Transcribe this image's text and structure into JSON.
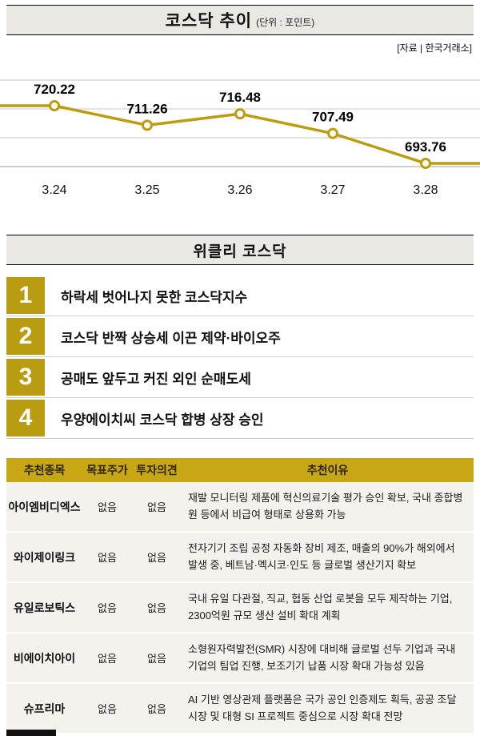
{
  "header": {
    "title": "코스닥 추이",
    "unit": "(단위 : 포인트)",
    "source": "[자료 | 한국거래소]"
  },
  "chart_data": {
    "type": "line",
    "title": "코스닥 추이 (단위 : 포인트)",
    "x": [
      "3.24",
      "3.25",
      "3.26",
      "3.27",
      "3.28"
    ],
    "values": [
      720.22,
      711.26,
      716.48,
      707.49,
      693.76
    ],
    "value_labels": [
      "720.22",
      "711.26",
      "716.48",
      "707.49",
      "693.76"
    ],
    "ylim": [
      690,
      724
    ],
    "grid": true,
    "line_color": "#bb9d10",
    "point_fill": "#fffdf4"
  },
  "weekly": {
    "title": "위클리 코스닥",
    "items": [
      {
        "rank": "1",
        "text": "하락세 벗어나지 못한 코스닥지수"
      },
      {
        "rank": "2",
        "text": "코스닥 반짝 상승세 이끈 제약·바이오주"
      },
      {
        "rank": "3",
        "text": "공매도 앞두고 커진 외인 순매도세"
      },
      {
        "rank": "4",
        "text": "우양에이치씨 코스닥 합병 상장 승인"
      }
    ]
  },
  "table": {
    "headers": [
      "추천종목",
      "목표주가",
      "투자의견",
      "추천이유"
    ],
    "rows": [
      {
        "name": "아이엠비디엑스",
        "target": "없음",
        "opinion": "없음",
        "reason": "재발 모니터링 제품에 혁신의료기술 평가 승인 확보, 국내 종합병원 등에서 비급여 형태로 상용화 가능"
      },
      {
        "name": "와이제이링크",
        "target": "없음",
        "opinion": "없음",
        "reason": "전자기기 조립 공정 자동화 장비 제조, 매출의 90%가 해외에서 발생 중, 베트남·멕시코·인도 등 글로벌 생산기지 확보"
      },
      {
        "name": "유일로보틱스",
        "target": "없음",
        "opinion": "없음",
        "reason": "국내 유일 다관절, 직교, 협동 산업 로봇을 모두 제작하는 기업, 2300억원 규모 생산 설비 확대 계획"
      },
      {
        "name": "비에이치아이",
        "target": "없음",
        "opinion": "없음",
        "reason": "소형원자력발전(SMR) 시장에 대비해 글로벌 선두 기업과 국내 기업의 팀업 진행, 보조기기 납품 시장 확대 가능성 있음"
      },
      {
        "name": "슈프리마",
        "target": "없음",
        "opinion": "없음",
        "reason": "AI 기반 영상관제 플랫폼은 국가 공인 인증제도 획득, 공공 조달 시장 및 대형 SI 프로젝트 중심으로 시장 확대 전망"
      }
    ]
  }
}
